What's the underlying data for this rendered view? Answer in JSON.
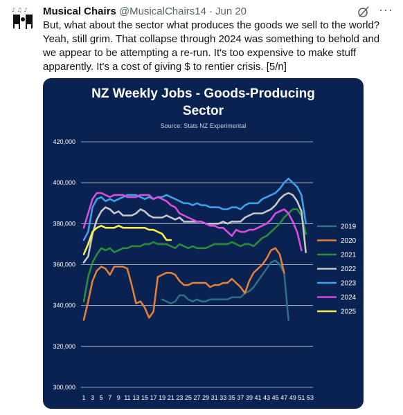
{
  "tweet": {
    "author_name": "Musical Chairs",
    "handle": "@MusicalChairs14",
    "separator": "·",
    "time": "Jun 20",
    "more_label": "···",
    "text": "But, what about the sector what produces the goods we sell to the world? Yeah, still grim. That collapse through 2024 was something to behold and we appear to be attempting a re-run. It's too expensive to make stuff apparently. It's a cost of giving $ to rentier crisis. [5/n]"
  },
  "chart_data": {
    "type": "line",
    "title_line1": "NZ Weekly Jobs - Goods-Producing",
    "title_line2": "Sector",
    "subtitle": "Source: Stats NZ Experimental",
    "xlabel": "",
    "ylabel": "",
    "ylim": [
      300000,
      420000
    ],
    "y_ticks": [
      300000,
      320000,
      340000,
      360000,
      380000,
      400000,
      420000
    ],
    "y_tick_labels": [
      "300,000",
      "320,000",
      "340,000",
      "360,000",
      "380,000",
      "400,000",
      "420,000"
    ],
    "x_tick_labels": [
      "1",
      "3",
      "5",
      "7",
      "9",
      "11",
      "13",
      "15",
      "17",
      "19",
      "21",
      "23",
      "25",
      "27",
      "29",
      "31",
      "33",
      "35",
      "37",
      "39",
      "41",
      "43",
      "45",
      "47",
      "49",
      "51",
      "53"
    ],
    "grid": true,
    "legend_position": "right",
    "background": "#0a2252",
    "series": [
      {
        "name": "2019",
        "color": "#2f6f86",
        "start_week": 19,
        "values": [
          343000,
          342000,
          341000,
          342000,
          345000,
          345000,
          343000,
          342000,
          343000,
          342000,
          342000,
          343000,
          343000,
          343000,
          343000,
          343000,
          344000,
          344000,
          344000,
          346000,
          347000,
          349000,
          352000,
          355000,
          358000,
          361000,
          362000,
          360000,
          356000,
          333000
        ]
      },
      {
        "name": "2020",
        "color": "#e0803a",
        "start_week": 1,
        "values": [
          333000,
          342000,
          352000,
          357000,
          359000,
          358000,
          355000,
          359000,
          359000,
          359000,
          358000,
          350000,
          341000,
          342000,
          339000,
          334000,
          337000,
          354000,
          355000,
          356000,
          356000,
          355000,
          352000,
          350000,
          350000,
          351000,
          351000,
          351000,
          351000,
          349000,
          350000,
          350000,
          351000,
          351000,
          353000,
          351000,
          349000,
          346000,
          352000,
          356000,
          358000,
          360000,
          363000,
          367000,
          368000,
          365000,
          356000
        ]
      },
      {
        "name": "2021",
        "color": "#2e8b3a",
        "start_week": 1,
        "values": [
          342000,
          354000,
          361000,
          365000,
          368000,
          367000,
          368000,
          366000,
          367000,
          368000,
          368000,
          369000,
          369000,
          369000,
          370000,
          370000,
          371000,
          370000,
          370000,
          370000,
          369000,
          368000,
          370000,
          369000,
          368000,
          369000,
          368000,
          368000,
          368000,
          369000,
          370000,
          370000,
          370000,
          370000,
          371000,
          370000,
          369000,
          370000,
          370000,
          369000,
          371000,
          373000,
          374000,
          376000,
          378000,
          380000,
          383000,
          385000,
          387000,
          387000,
          384000,
          375000
        ]
      },
      {
        "name": "2022",
        "color": "#c8c8c8",
        "start_week": 1,
        "values": [
          361000,
          364000,
          375000,
          382000,
          386000,
          388000,
          387000,
          385000,
          386000,
          384000,
          384000,
          384000,
          385000,
          387000,
          386000,
          384000,
          383000,
          383000,
          383000,
          384000,
          383000,
          382000,
          383000,
          381000,
          381000,
          381000,
          381000,
          381000,
          380000,
          380000,
          380000,
          380000,
          381000,
          380000,
          381000,
          381000,
          381000,
          383000,
          384000,
          385000,
          385000,
          385000,
          386000,
          387000,
          389000,
          392000,
          394000,
          395000,
          394000,
          391000,
          386000,
          366000
        ]
      },
      {
        "name": "2023",
        "color": "#3ea0e8",
        "start_week": 1,
        "values": [
          372000,
          376000,
          388000,
          392000,
          393000,
          391000,
          392000,
          391000,
          392000,
          393000,
          394000,
          394000,
          394000,
          393000,
          392000,
          393000,
          392000,
          393000,
          393000,
          394000,
          393000,
          392000,
          391000,
          390000,
          390000,
          389000,
          390000,
          389000,
          389000,
          388000,
          388000,
          388000,
          387000,
          387000,
          388000,
          388000,
          387000,
          389000,
          390000,
          390000,
          390000,
          392000,
          393000,
          394000,
          395000,
          397000,
          400000,
          402000,
          400000,
          398000,
          394000,
          380000
        ]
      },
      {
        "name": "2024",
        "color": "#d84fe0",
        "start_week": 1,
        "values": [
          378000,
          385000,
          392000,
          395000,
          395000,
          394000,
          393000,
          394000,
          394000,
          394000,
          393000,
          393000,
          393000,
          394000,
          394000,
          394000,
          392000,
          393000,
          392000,
          391000,
          389000,
          388000,
          385000,
          384000,
          383000,
          382000,
          381000,
          381000,
          380000,
          379000,
          379000,
          378000,
          378000,
          376000,
          374000,
          377000,
          376000,
          376000,
          377000,
          377000,
          378000,
          379000,
          380000,
          382000,
          385000,
          386000,
          387000,
          385000,
          381000,
          376000,
          367000
        ]
      },
      {
        "name": "2025",
        "color": "#f5f04a",
        "start_week": 1,
        "values": [
          365000,
          370000,
          376000,
          378000,
          379000,
          378000,
          378000,
          378000,
          379000,
          378000,
          378000,
          378000,
          378000,
          378000,
          378000,
          377000,
          377000,
          376000,
          375000,
          372000,
          372000
        ]
      }
    ]
  }
}
